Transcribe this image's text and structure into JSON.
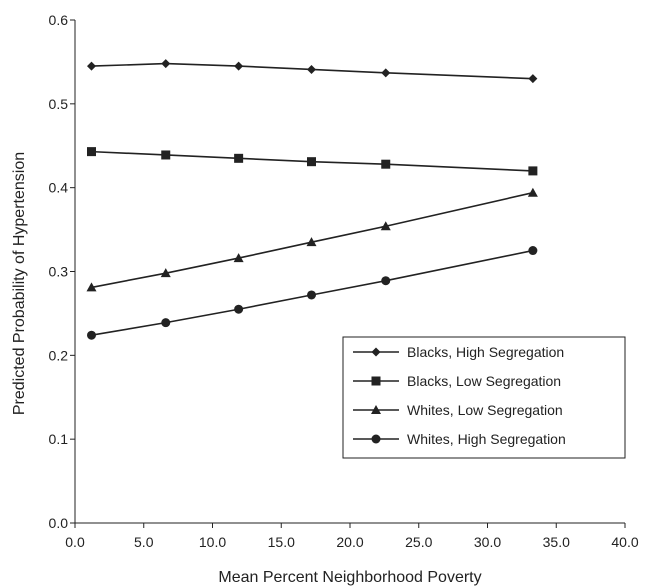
{
  "chart_data": {
    "type": "line",
    "title": "",
    "xlabel": "Mean Percent Neighborhood Poverty",
    "ylabel": "Predicted Probability of Hypertension",
    "xlim": [
      0,
      40
    ],
    "ylim": [
      0,
      0.6
    ],
    "x_ticks": [
      "0.0",
      "5.0",
      "10.0",
      "15.0",
      "20.0",
      "25.0",
      "30.0",
      "35.0",
      "40.0"
    ],
    "y_ticks": [
      "0.0",
      "0.1",
      "0.2",
      "0.3",
      "0.4",
      "0.5",
      "0.6"
    ],
    "grid": false,
    "legend_position": "bottom-right",
    "x": [
      1.2,
      6.6,
      11.9,
      17.2,
      22.6,
      33.3
    ],
    "series": [
      {
        "name": "Blacks, High Segregation",
        "marker": "diamond",
        "values": [
          0.545,
          0.548,
          0.545,
          0.541,
          0.537,
          0.53
        ]
      },
      {
        "name": "Blacks, Low Segregation",
        "marker": "square",
        "values": [
          0.443,
          0.439,
          0.435,
          0.431,
          0.428,
          0.42
        ]
      },
      {
        "name": "Whites, Low Segregation",
        "marker": "triangle",
        "values": [
          0.281,
          0.298,
          0.316,
          0.335,
          0.354,
          0.394
        ]
      },
      {
        "name": "Whites, High Segregation",
        "marker": "circle",
        "values": [
          0.224,
          0.239,
          0.255,
          0.272,
          0.289,
          0.325
        ]
      }
    ],
    "colors": {
      "line": "#222222",
      "axis": "#222222",
      "legend_border": "#222222"
    }
  }
}
